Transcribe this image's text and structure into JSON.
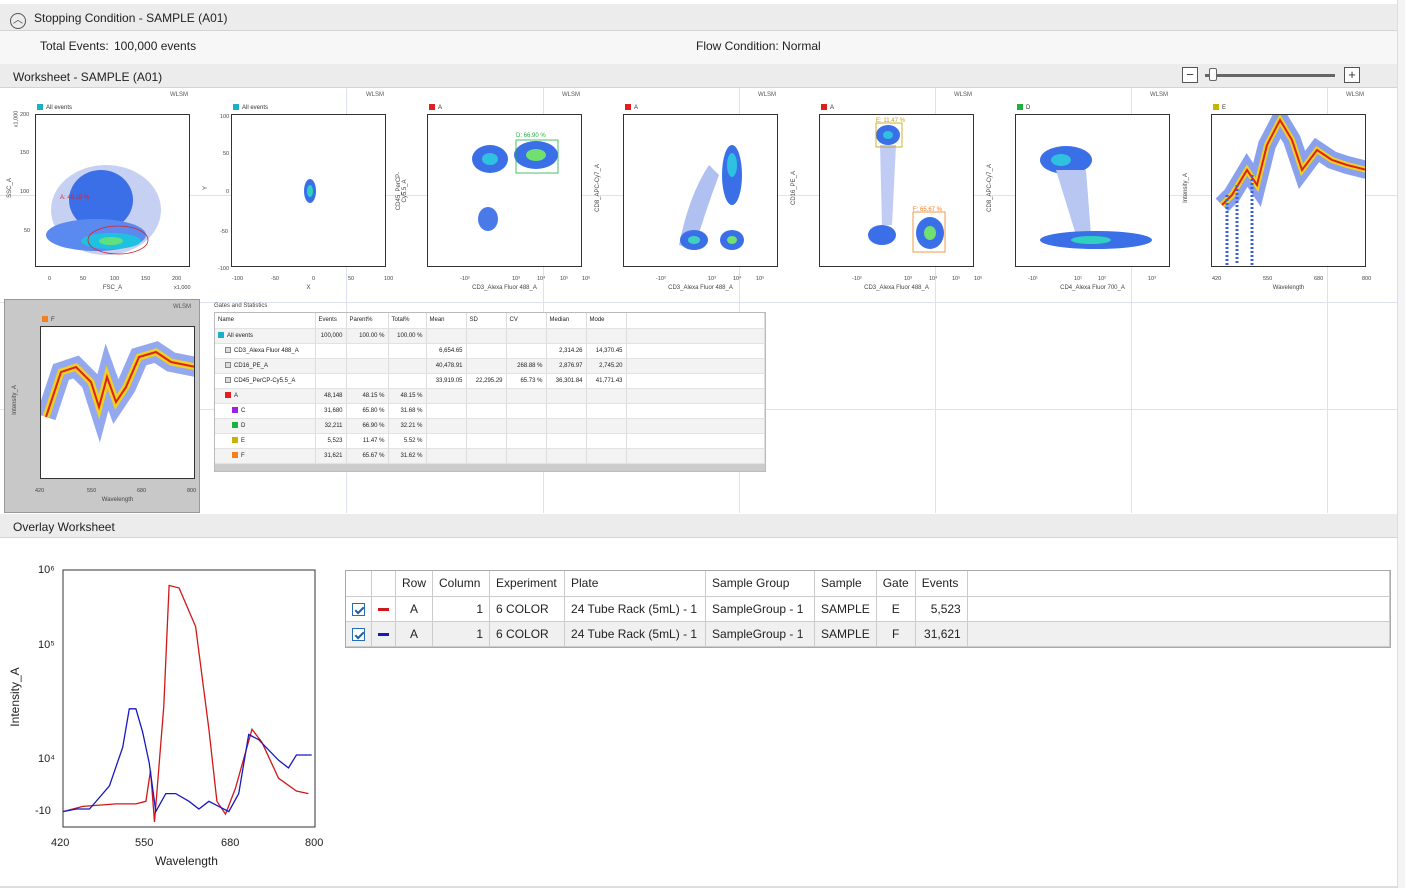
{
  "stopping": {
    "title": "Stopping Condition - SAMPLE (A01)",
    "total_events_label": "Total Events:",
    "total_events_value": "100,000 events",
    "flow_condition": "Flow Condition: Normal"
  },
  "worksheet": {
    "title": "Worksheet - SAMPLE (A01)",
    "zoom_level": 0.02,
    "wlsm": "WLSM",
    "plots": [
      {
        "gate": "All events",
        "color": "#1ab0c8",
        "xlabel": "FSC_A",
        "ylabel": "SSC_A",
        "xticks": [
          "0",
          "50",
          "100",
          "150",
          "200"
        ],
        "yticks": [
          "200",
          "150",
          "100",
          "50",
          "0"
        ],
        "gate_label": "A: 48.15 %",
        "xunit": "x1,000",
        "yunit": "x1,000"
      },
      {
        "gate": "All events",
        "color": "#1ab0c8",
        "xlabel": "X",
        "ylabel": "Y",
        "xticks": [
          "-100",
          "-50",
          "0",
          "50",
          "100"
        ],
        "yticks": [
          "100",
          "50",
          "0",
          "-50",
          "-100"
        ]
      },
      {
        "gate": "A",
        "color": "#e02020",
        "xlabel": "CD3_Alexa Fluor 488_A",
        "ylabel": "CD45_PerCP-Cy5.5_A",
        "xticks": [
          "-10²",
          "-10¹",
          "10¹",
          "10²",
          "10³",
          "10⁴",
          "10⁵",
          "10⁶"
        ],
        "gate_label": "D: 66.90 %"
      },
      {
        "gate": "A",
        "color": "#e02020",
        "xlabel": "CD3_Alexa Fluor 488_A",
        "ylabel": "CD8_APC-Cy7_A",
        "xticks": [
          "-10²",
          "-10¹",
          "10¹",
          "10²",
          "10³",
          "10⁴",
          "10⁵",
          "10⁶"
        ]
      },
      {
        "gate": "A",
        "color": "#e02020",
        "xlabel": "CD3_Alexa Fluor 488_A",
        "ylabel": "CD16_PE_A",
        "xticks": [
          "-10²",
          "-10¹",
          "10¹",
          "10²",
          "10³",
          "10⁴",
          "10⁵",
          "10⁶"
        ],
        "gate_label": "E: 11.47 %",
        "gate_label2": "F: 65.67 %"
      },
      {
        "gate": "D",
        "color": "#20b040",
        "xlabel": "CD4_Alexa Fluor 700_A",
        "ylabel": "CD8_APC-Cy7_A",
        "xticks": [
          "-10¹",
          "10¹",
          "10²",
          "10³"
        ]
      },
      {
        "gate": "E",
        "color": "#c8b400",
        "xlabel": "Wavelength",
        "ylabel": "Intensity_A",
        "xticks": [
          "420",
          "550",
          "680",
          "800"
        ]
      }
    ],
    "plot8": {
      "gate": "F",
      "color": "#f08020",
      "xlabel": "Wavelength",
      "ylabel": "Intensity_A",
      "xticks": [
        "420",
        "550",
        "680",
        "800"
      ]
    },
    "gates_stats": {
      "title": "Gates and Statistics",
      "headers": [
        "Name",
        "Events",
        "Parent%",
        "Total%",
        "Mean",
        "SD",
        "CV",
        "Median",
        "Mode"
      ],
      "rows": [
        {
          "name": "All events",
          "sw": "#1ab0c8",
          "indent": 0,
          "vals": [
            "100,000",
            "100.00 %",
            "100.00 %",
            "",
            "",
            "",
            "",
            ""
          ]
        },
        {
          "name": "CD3_Alexa Fluor 488_A",
          "sw": "stat",
          "indent": 1,
          "vals": [
            "",
            "",
            "",
            "6,654.65",
            "",
            "",
            "2,314.26",
            "14,370.45"
          ]
        },
        {
          "name": "CD16_PE_A",
          "sw": "stat",
          "indent": 1,
          "vals": [
            "",
            "",
            "",
            "40,478.91",
            "",
            "268.88 %",
            "2,876.97",
            "2,745.20"
          ]
        },
        {
          "name": "CD45_PerCP-Cy5.5_A",
          "sw": "stat",
          "indent": 1,
          "vals": [
            "",
            "",
            "",
            "33,919.05",
            "22,295.29",
            "65.73 %",
            "36,301.84",
            "41,771.43"
          ]
        },
        {
          "name": "A",
          "sw": "#e02020",
          "indent": 1,
          "vals": [
            "48,148",
            "48.15 %",
            "48.15 %",
            "",
            "",
            "",
            "",
            ""
          ]
        },
        {
          "name": "C",
          "sw": "#a020e0",
          "indent": 2,
          "vals": [
            "31,680",
            "65.80 %",
            "31.68 %",
            "",
            "",
            "",
            "",
            ""
          ]
        },
        {
          "name": "D",
          "sw": "#20b040",
          "indent": 2,
          "vals": [
            "32,211",
            "66.90 %",
            "32.21 %",
            "",
            "",
            "",
            "",
            ""
          ]
        },
        {
          "name": "E",
          "sw": "#c8b400",
          "indent": 2,
          "vals": [
            "5,523",
            "11.47 %",
            "5.52 %",
            "",
            "",
            "",
            "",
            ""
          ]
        },
        {
          "name": "F",
          "sw": "#f08020",
          "indent": 2,
          "vals": [
            "31,621",
            "65.67 %",
            "31.62 %",
            "",
            "",
            "",
            "",
            ""
          ]
        }
      ]
    }
  },
  "overlay": {
    "title": "Overlay Worksheet",
    "xlabel": "Wavelength",
    "ylabel": "Intensity_A",
    "xticks": [
      "420",
      "550",
      "680",
      "800"
    ],
    "yticks": [
      "10⁶",
      "10⁵",
      "10⁴",
      "-10"
    ],
    "table": {
      "headers": [
        "",
        "",
        "Row",
        "Column",
        "Experiment",
        "Plate",
        "Sample Group",
        "Sample",
        "Gate",
        "Events"
      ],
      "rows": [
        {
          "checked": true,
          "color": "#d01818",
          "row": "A",
          "column": "1",
          "experiment": "6 COLOR",
          "plate": "24 Tube Rack (5mL) - 1",
          "group": "SampleGroup - 1",
          "sample": "SAMPLE",
          "gate": "E",
          "events": "5,523"
        },
        {
          "checked": true,
          "color": "#1818c0",
          "row": "A",
          "column": "1",
          "experiment": "6 COLOR",
          "plate": "24 Tube Rack (5mL) - 1",
          "group": "SampleGroup - 1",
          "sample": "SAMPLE",
          "gate": "F",
          "events": "31,621"
        }
      ]
    },
    "chart_data": {
      "type": "line",
      "xlabel": "Wavelength",
      "ylabel": "Intensity_A",
      "xlim": [
        420,
        800
      ],
      "series": [
        {
          "name": "E",
          "color": "#d01818",
          "x": [
            420,
            450,
            500,
            530,
            545,
            552,
            558,
            572,
            580,
            595,
            610,
            620,
            640,
            652,
            665,
            680,
            705,
            720,
            745,
            772,
            790
          ],
          "y": [
            0.06,
            0.08,
            0.09,
            0.09,
            0.1,
            0.22,
            0.02,
            0.47,
            0.94,
            0.93,
            0.84,
            0.78,
            0.38,
            0.1,
            0.05,
            0.15,
            0.38,
            0.33,
            0.19,
            0.14,
            0.13
          ]
        },
        {
          "name": "F",
          "color": "#1818c0",
          "x": [
            420,
            440,
            460,
            490,
            510,
            520,
            530,
            540,
            550,
            560,
            575,
            590,
            610,
            625,
            640,
            655,
            670,
            685,
            700,
            715,
            730,
            745,
            760,
            772,
            785,
            795
          ],
          "y": [
            0.06,
            0.07,
            0.07,
            0.16,
            0.31,
            0.46,
            0.46,
            0.37,
            0.25,
            0.06,
            0.13,
            0.13,
            0.1,
            0.07,
            0.1,
            0.08,
            0.06,
            0.13,
            0.36,
            0.34,
            0.3,
            0.26,
            0.23,
            0.28,
            0.28,
            0.28
          ]
        }
      ]
    }
  }
}
